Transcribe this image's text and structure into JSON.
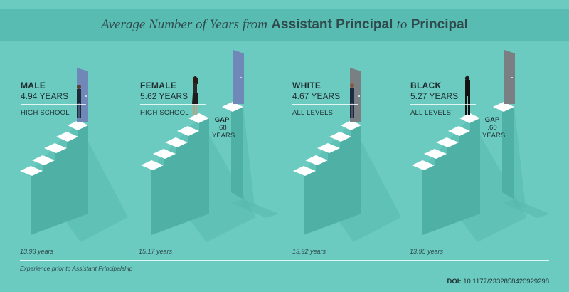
{
  "title": {
    "part1": "Average Number of Years from",
    "part2": "Assistant Principal",
    "part3": "to",
    "part4": "Principal"
  },
  "groups": [
    {
      "name": "MALE",
      "years": "4.94 YEARS",
      "level": "HIGH SCHOOL",
      "prior_experience": "13.93 years"
    },
    {
      "name": "FEMALE",
      "years": "5.62 YEARS",
      "level": "HIGH SCHOOL",
      "prior_experience": "15.17 years"
    },
    {
      "name": "WHITE",
      "years": "4.67 YEARS",
      "level": "ALL LEVELS",
      "prior_experience": "13.92 years"
    },
    {
      "name": "BLACK",
      "years": "5.27 YEARS",
      "level": "ALL LEVELS",
      "prior_experience": "13.95 years"
    }
  ],
  "gaps": [
    {
      "label": "GAP",
      "value": ".68",
      "unit": "YEARS"
    },
    {
      "label": "GAP",
      "value": ".60",
      "unit": "YEARS"
    }
  ],
  "footnote": "Experience prior to Assistant Principalship",
  "doi": {
    "label": "DOI:",
    "value": "10.1177/2332858420929298"
  },
  "colors": {
    "background": "#6ccbc1",
    "banner": "#58bcb2",
    "stair_front": "#4fb0a6",
    "stair_side": "#3f9990",
    "step_top": "#ffffff",
    "door_blue": "#6f88b8",
    "door_gray": "#7a7f83"
  }
}
